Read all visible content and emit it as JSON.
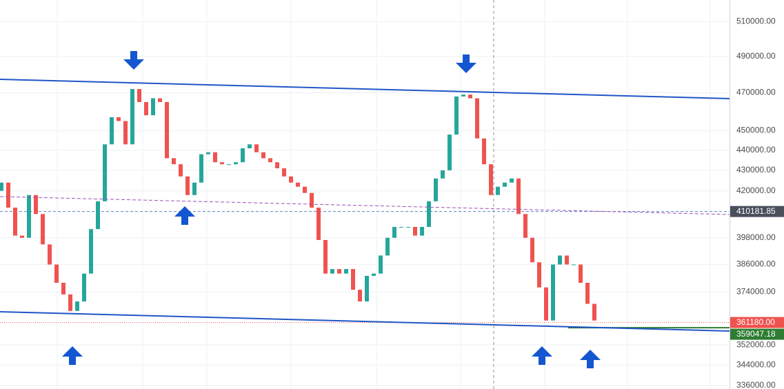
{
  "chart_data": {
    "type": "candlestick",
    "log_scale": true,
    "grid": true,
    "up_color": "#26a69a",
    "down_color": "#ef5350",
    "ylim": [
      336000,
      522700
    ],
    "yticks": [
      {
        "value": 510000,
        "label": "510000.00"
      },
      {
        "value": 490000,
        "label": "490000.00"
      },
      {
        "value": 470000,
        "label": "470000.00"
      },
      {
        "value": 450000,
        "label": "450000.00"
      },
      {
        "value": 440000,
        "label": "440000.00"
      },
      {
        "value": 430000,
        "label": "430000.00"
      },
      {
        "value": 420000,
        "label": "420000.00"
      },
      {
        "value": 398000,
        "label": "398000.00"
      },
      {
        "value": 386000,
        "label": "386000.00"
      },
      {
        "value": 374000,
        "label": "374000.00"
      },
      {
        "value": 352000,
        "label": "352000.00"
      },
      {
        "value": 344000,
        "label": "344000.00"
      },
      {
        "value": 336000,
        "label": "336000.00"
      }
    ],
    "open": [
      420000,
      424000,
      412000,
      399000,
      398000,
      418000,
      409000,
      395000,
      386000,
      378000,
      373000,
      366000,
      370000,
      382000,
      402000,
      415000,
      443000,
      457000,
      455000,
      443000,
      472000,
      465000,
      458000,
      467000,
      465000,
      436000,
      433000,
      427000,
      418000,
      424000,
      438000,
      439000,
      434000,
      433000,
      433000,
      434000,
      441000,
      443000,
      439000,
      436000,
      434000,
      431000,
      427000,
      424000,
      422000,
      419000,
      412000,
      397000,
      382000,
      384000,
      382000,
      384000,
      375000,
      370000,
      381000,
      382000,
      390000,
      398000,
      403000,
      403000,
      403000,
      399000,
      403000,
      415000,
      426000,
      430000,
      448000,
      468000,
      469000,
      467000,
      446000,
      433000,
      418000,
      422000,
      424000,
      426000,
      409000,
      398000,
      387000,
      376000,
      362000,
      386000,
      390000,
      386000,
      386000,
      378000,
      369000
    ],
    "close": [
      424000,
      412000,
      399000,
      398000,
      418000,
      409000,
      395000,
      386000,
      378000,
      373000,
      366000,
      370000,
      382000,
      402000,
      415000,
      443000,
      457000,
      455000,
      443000,
      472000,
      465000,
      458000,
      467000,
      465000,
      436000,
      433000,
      427000,
      418000,
      424000,
      438000,
      439000,
      434000,
      433000,
      433000,
      434000,
      441000,
      443000,
      439000,
      436000,
      434000,
      431000,
      427000,
      424000,
      422000,
      419000,
      412000,
      397000,
      382000,
      384000,
      382000,
      384000,
      375000,
      370000,
      381000,
      382000,
      390000,
      398000,
      403000,
      403000,
      403000,
      399000,
      403000,
      415000,
      426000,
      430000,
      448000,
      468000,
      469000,
      467000,
      446000,
      433000,
      418000,
      422000,
      424000,
      426000,
      409000,
      398000,
      387000,
      376000,
      362000,
      386000,
      390000,
      386000,
      386000,
      378000,
      369000,
      362000
    ],
    "price_lines": [
      {
        "value": 410181.85,
        "color": "#4a4f5c",
        "style": "dashed"
      },
      {
        "value": 361180,
        "label": "361180.00",
        "color": "#ef5350",
        "style": "dotted"
      },
      {
        "value": 359047.18,
        "color": "#2e7d32",
        "style": "solid"
      }
    ]
  }
}
